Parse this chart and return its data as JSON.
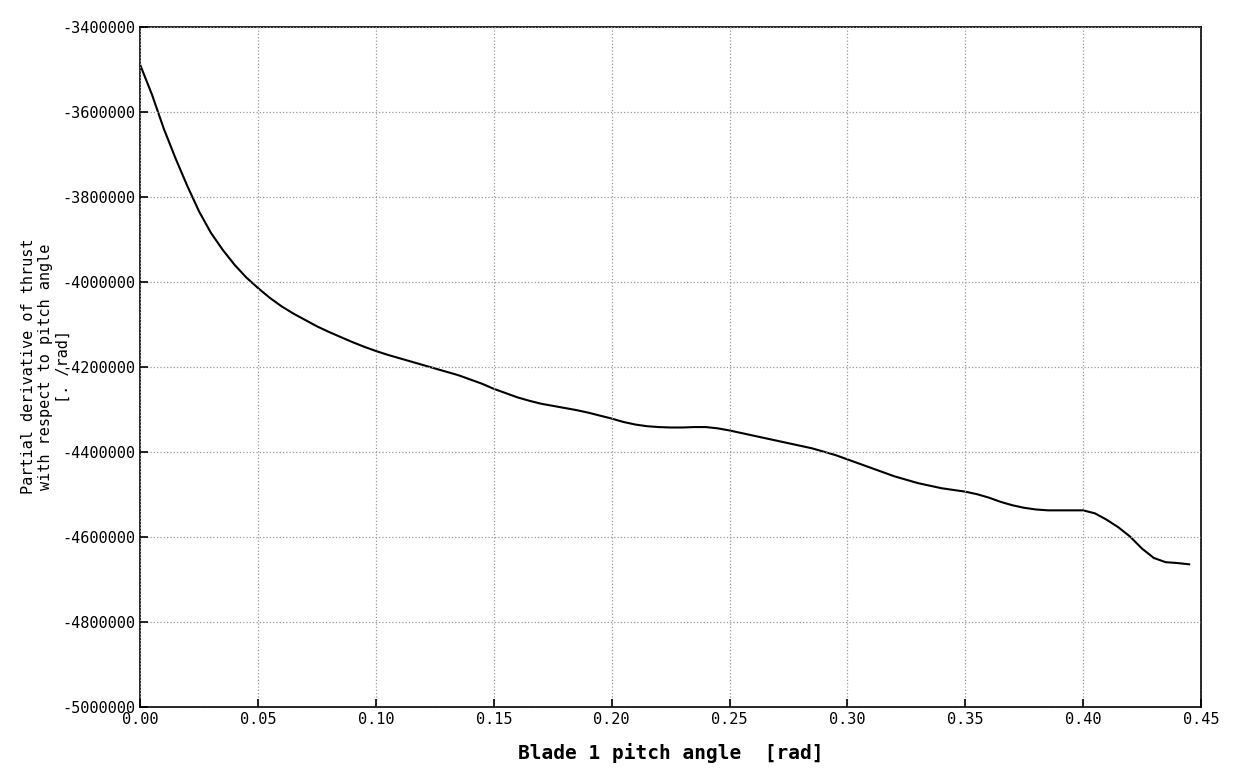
{
  "title": "",
  "xlabel": "Blade 1 pitch angle  [rad]",
  "ylabel": "Partial derivative of thrust\nwith respect to pitch angle\n[. /rad]",
  "xlim": [
    0.0,
    0.45
  ],
  "ylim": [
    -5000000,
    -3400000
  ],
  "xticks": [
    0.0,
    0.05,
    0.1,
    0.15,
    0.2,
    0.25,
    0.3,
    0.35,
    0.4,
    0.45
  ],
  "yticks": [
    -5000000,
    -4800000,
    -4600000,
    -4400000,
    -4200000,
    -4000000,
    -3800000,
    -3600000,
    -3400000
  ],
  "line_color": "#000000",
  "line_width": 1.5,
  "background_color": "#ffffff",
  "grid_color": "#999999",
  "font_family": "monospace",
  "x_data": [
    0.0,
    0.005,
    0.01,
    0.015,
    0.02,
    0.025,
    0.03,
    0.035,
    0.04,
    0.045,
    0.05,
    0.055,
    0.06,
    0.065,
    0.07,
    0.075,
    0.08,
    0.085,
    0.09,
    0.095,
    0.1,
    0.105,
    0.11,
    0.115,
    0.12,
    0.125,
    0.13,
    0.135,
    0.14,
    0.145,
    0.15,
    0.155,
    0.16,
    0.165,
    0.17,
    0.175,
    0.18,
    0.185,
    0.19,
    0.195,
    0.2,
    0.205,
    0.21,
    0.215,
    0.22,
    0.225,
    0.23,
    0.235,
    0.24,
    0.245,
    0.25,
    0.255,
    0.26,
    0.265,
    0.27,
    0.275,
    0.28,
    0.285,
    0.29,
    0.295,
    0.3,
    0.305,
    0.31,
    0.315,
    0.32,
    0.325,
    0.33,
    0.335,
    0.34,
    0.345,
    0.35,
    0.355,
    0.36,
    0.365,
    0.37,
    0.375,
    0.38,
    0.385,
    0.39,
    0.395,
    0.4,
    0.405,
    0.41,
    0.415,
    0.42,
    0.425,
    0.43,
    0.435,
    0.44,
    0.445
  ],
  "y_data": [
    -3490000,
    -3560000,
    -3640000,
    -3710000,
    -3775000,
    -3835000,
    -3885000,
    -3925000,
    -3960000,
    -3990000,
    -4015000,
    -4038000,
    -4058000,
    -4075000,
    -4090000,
    -4105000,
    -4118000,
    -4130000,
    -4142000,
    -4153000,
    -4163000,
    -4172000,
    -4180000,
    -4188000,
    -4196000,
    -4204000,
    -4212000,
    -4220000,
    -4230000,
    -4240000,
    -4252000,
    -4262000,
    -4272000,
    -4280000,
    -4287000,
    -4292000,
    -4297000,
    -4302000,
    -4308000,
    -4315000,
    -4322000,
    -4330000,
    -4336000,
    -4340000,
    -4342000,
    -4343000,
    -4343000,
    -4342000,
    -4342000,
    -4345000,
    -4350000,
    -4356000,
    -4362000,
    -4368000,
    -4374000,
    -4380000,
    -4386000,
    -4392000,
    -4400000,
    -4408000,
    -4418000,
    -4428000,
    -4438000,
    -4448000,
    -4458000,
    -4466000,
    -4474000,
    -4480000,
    -4486000,
    -4490000,
    -4494000,
    -4500000,
    -4508000,
    -4518000,
    -4526000,
    -4532000,
    -4536000,
    -4538000,
    -4538000,
    -4538000,
    -4538000,
    -4545000,
    -4560000,
    -4578000,
    -4600000,
    -4628000,
    -4650000,
    -4660000,
    -4662000,
    -4665000
  ]
}
